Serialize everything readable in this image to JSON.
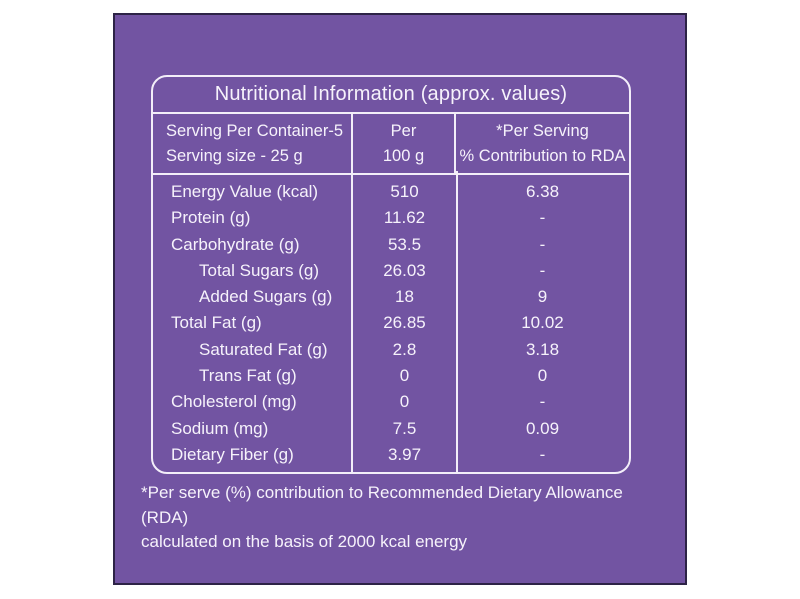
{
  "label": {
    "title": "Nutritional Information (approx. values)",
    "header": {
      "serving_line1": "Serving Per Container-5",
      "serving_line2": "Serving size - 25 g",
      "per_line1": "Per",
      "per_line2": "100 g",
      "rda_line1": "*Per Serving",
      "rda_line2": "% Contribution to RDA"
    },
    "rows": [
      {
        "name": "Energy Value (kcal)",
        "per_100g": "510",
        "rda": "6.38",
        "indent": false
      },
      {
        "name": "Protein (g)",
        "per_100g": "11.62",
        "rda": "-",
        "indent": false
      },
      {
        "name": "Carbohydrate (g)",
        "per_100g": "53.5",
        "rda": "-",
        "indent": false
      },
      {
        "name": "Total Sugars (g)",
        "per_100g": "26.03",
        "rda": "-",
        "indent": true
      },
      {
        "name": "Added Sugars (g)",
        "per_100g": "18",
        "rda": "9",
        "indent": true
      },
      {
        "name": "Total Fat (g)",
        "per_100g": "26.85",
        "rda": "10.02",
        "indent": false
      },
      {
        "name": "Saturated Fat (g)",
        "per_100g": "2.8",
        "rda": "3.18",
        "indent": true
      },
      {
        "name": "Trans Fat (g)",
        "per_100g": "0",
        "rda": "0",
        "indent": true
      },
      {
        "name": "Cholesterol (mg)",
        "per_100g": "0",
        "rda": "-",
        "indent": false
      },
      {
        "name": "Sodium (mg)",
        "per_100g": "7.5",
        "rda": "0.09",
        "indent": false
      },
      {
        "name": "Dietary Fiber (g)",
        "per_100g": "3.97",
        "rda": "-",
        "indent": false
      }
    ],
    "footnote_line1": "*Per serve (%) contribution to Recommended Dietary Allowance (RDA)",
    "footnote_line2": "calculated on the basis of 2000 kcal energy",
    "colors": {
      "panel_purple": "#7254a2",
      "panel_border": "#2d2346",
      "table_line": "#f3eef9",
      "text": "#f6f2fb",
      "page_background": "#ffffff"
    }
  }
}
